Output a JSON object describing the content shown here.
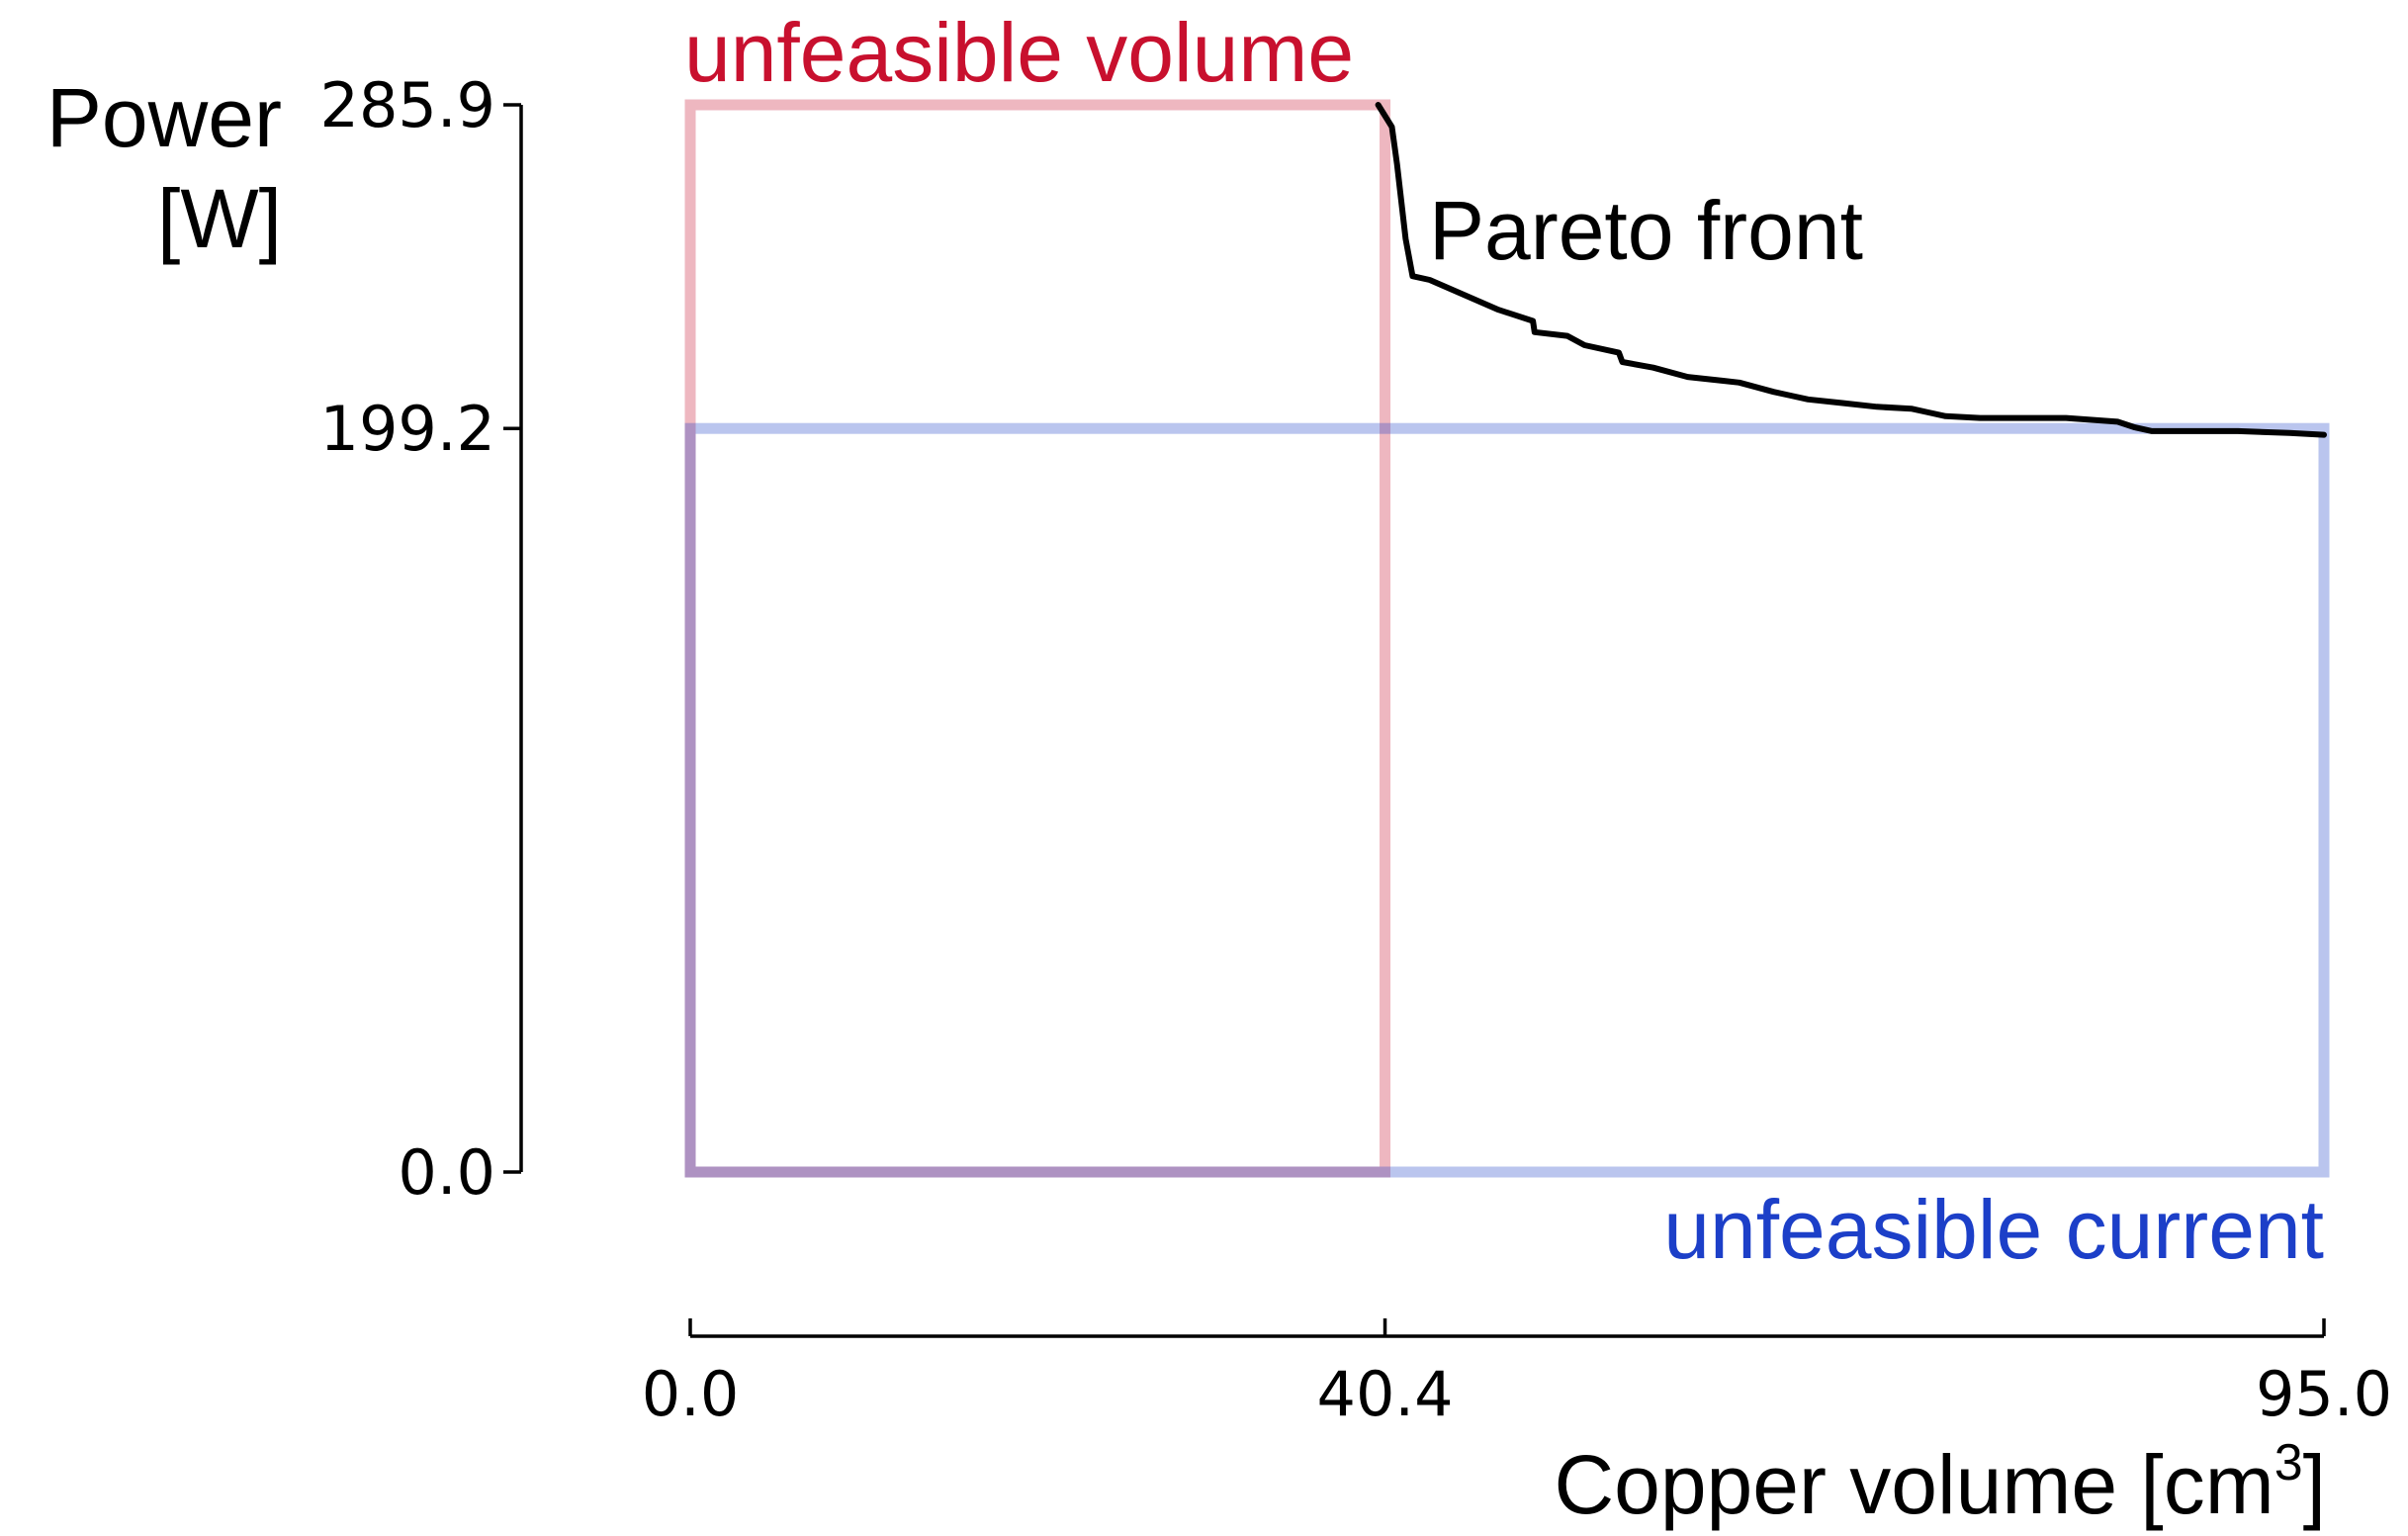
{
  "chart_data": {
    "type": "line",
    "xlabel": "Copper volume [cm",
    "xlabel_sup": "3",
    "xlabel_close": "]",
    "ylabel": [
      "Power",
      "[W]"
    ],
    "xlim": [
      0.0,
      95.0
    ],
    "ylim": [
      0.0,
      285.9
    ],
    "x_ticks": [
      0.0,
      40.4,
      95.0
    ],
    "x_tick_labels": [
      "0.0",
      "40.4",
      "95.0"
    ],
    "y_ticks": [
      0.0,
      199.2,
      285.9
    ],
    "y_tick_labels": [
      "0.0",
      "199.2",
      "285.9"
    ],
    "grid": false,
    "series": [
      {
        "name": "Pareto front",
        "color": "#000000",
        "x": [
          40.0,
          40.8,
          41.1,
          41.6,
          42.0,
          43.0,
          45.0,
          47.0,
          49.0,
          49.1,
          51.0,
          52.0,
          54.0,
          54.2,
          56.0,
          58.0,
          60.0,
          61.0,
          63.0,
          64.0,
          65.0,
          67.0,
          69.0,
          71.0,
          72.0,
          73.0,
          75.0,
          80.0,
          83.0,
          84.0,
          85.0,
          86.0,
          87.0,
          90.0,
          93.0,
          95.0
        ],
        "y": [
          285.9,
          280.0,
          270.0,
          250.0,
          240.0,
          239.0,
          235.0,
          231.0,
          228.0,
          225.0,
          224.0,
          221.5,
          219.5,
          217.0,
          215.5,
          213.0,
          212.0,
          211.5,
          209.0,
          208.0,
          207.0,
          206.0,
          205.0,
          204.5,
          203.5,
          202.5,
          202.0,
          202.0,
          201.0,
          199.5,
          198.5,
          198.5,
          198.5,
          198.5,
          198.0,
          197.5
        ]
      }
    ],
    "regions": [
      {
        "name": "unfeasible volume",
        "color": "#c8102e",
        "x": [
          0.0,
          40.4
        ],
        "y": [
          0.0,
          285.9
        ],
        "opacity": 0.3
      },
      {
        "name": "unfeasible current",
        "color": "#1c3fc8",
        "x": [
          0.0,
          95.0
        ],
        "y": [
          0.0,
          199.2
        ],
        "opacity": 0.3
      }
    ],
    "annotations": [
      {
        "text": "unfeasible volume",
        "color": "#c8102e"
      },
      {
        "text": "unfeasible current",
        "color": "#1c3fc8"
      },
      {
        "text": "Pareto front",
        "color": "#000000"
      }
    ]
  }
}
